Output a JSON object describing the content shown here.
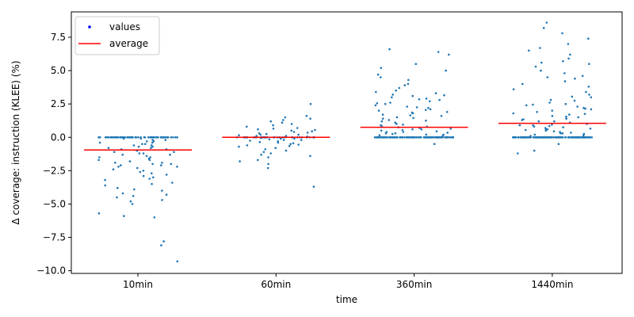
{
  "chart_data": {
    "type": "scatter",
    "xlabel": "time",
    "ylabel": "Δ coverage: instruction (KLEE) (%)",
    "categories": [
      "10min",
      "60min",
      "360min",
      "1440min"
    ],
    "ylim": [
      -10.2,
      9.4
    ],
    "yticks": [
      -10.0,
      -7.5,
      -5.0,
      -2.5,
      0.0,
      2.5,
      5.0,
      7.5
    ],
    "ytick_labels": [
      "−10.0",
      "−7.5",
      "−5.0",
      "−2.5",
      "0.0",
      "2.5",
      "5.0",
      "7.5"
    ],
    "grid": false,
    "legend": {
      "position": "top-left",
      "entries": [
        {
          "label": "values",
          "marker": "dot",
          "color": "#0000ff"
        },
        {
          "label": "average",
          "marker": "line",
          "color": "#ff0000"
        }
      ]
    },
    "series": [
      {
        "name": "values",
        "color": "#1f77b4",
        "groups": [
          {
            "category": "10min",
            "zero_count": 70,
            "values": [
              -0.1,
              -0.2,
              -0.3,
              -0.3,
              -0.4,
              -0.5,
              -0.6,
              -0.7,
              -0.8,
              -0.9,
              -1.0,
              -1.1,
              -1.1,
              -1.2,
              -1.3,
              -1.4,
              -1.5,
              -1.6,
              -1.7,
              -1.8,
              -1.9,
              -2.0,
              -2.1,
              -2.1,
              -2.2,
              -2.3,
              -2.4,
              -2.5,
              -2.7,
              -2.8,
              -2.9,
              -3.0,
              -3.2,
              -3.4,
              -3.6,
              -3.8,
              -3.9,
              -4.0,
              -4.2,
              -4.3,
              -4.5,
              -4.7,
              -4.8,
              -5.0,
              -5.7,
              -5.9,
              -6.0,
              -7.8,
              -8.1,
              -9.3,
              -0.5,
              -0.9,
              -1.3,
              -1.7,
              -2.2,
              -2.6,
              -3.1,
              -0.2,
              -0.6,
              -1.0,
              -1.5,
              -2.0,
              -0.4,
              -0.8,
              -1.2,
              -1.9,
              -3.5,
              -4.4,
              -0.1,
              -0.7
            ]
          },
          {
            "category": "60min",
            "zero_count": 40,
            "values": [
              0.1,
              -0.1,
              0.2,
              -0.2,
              0.3,
              -0.3,
              0.4,
              -0.4,
              0.5,
              -0.5,
              0.6,
              -0.6,
              0.7,
              -0.7,
              0.8,
              -0.8,
              0.9,
              -0.9,
              1.0,
              -1.0,
              1.1,
              -1.1,
              1.2,
              -1.2,
              1.3,
              -1.3,
              1.4,
              -1.4,
              1.5,
              -1.5,
              1.6,
              -1.7,
              -1.8,
              -2.0,
              -2.3,
              2.5,
              -3.7,
              0.15,
              -0.15,
              0.25,
              -0.25,
              0.35,
              -0.35,
              0.45,
              -0.45,
              0.55,
              -0.55,
              0.65,
              -0.65,
              0.05,
              -0.05,
              0.2,
              -0.2,
              0.1,
              -0.1
            ]
          },
          {
            "category": "360min",
            "zero_count": 120,
            "values": [
              0.1,
              0.2,
              0.3,
              0.4,
              0.5,
              0.6,
              0.7,
              0.8,
              0.9,
              1.0,
              1.1,
              1.2,
              1.3,
              1.4,
              1.5,
              1.6,
              1.7,
              1.8,
              1.9,
              2.0,
              2.1,
              2.2,
              2.3,
              2.4,
              2.5,
              2.6,
              2.7,
              2.8,
              2.9,
              3.0,
              3.1,
              3.2,
              3.3,
              3.4,
              3.5,
              3.7,
              3.9,
              4.0,
              4.3,
              4.5,
              4.7,
              5.0,
              5.2,
              5.5,
              6.2,
              6.4,
              6.6,
              0.15,
              0.25,
              0.35,
              0.45,
              0.55,
              0.65,
              0.75,
              0.85,
              0.95,
              1.25,
              1.45,
              1.65,
              1.85,
              2.05,
              2.25,
              2.55,
              2.85,
              3.15,
              -0.5,
              0.2,
              0.4,
              0.6,
              0.3
            ]
          },
          {
            "category": "1440min",
            "zero_count": 140,
            "values": [
              0.1,
              0.2,
              0.3,
              0.4,
              0.5,
              0.6,
              0.7,
              0.8,
              0.9,
              1.0,
              1.1,
              1.2,
              1.3,
              1.4,
              1.5,
              1.6,
              1.7,
              1.8,
              1.9,
              2.0,
              2.1,
              2.2,
              2.3,
              2.4,
              2.5,
              2.6,
              2.8,
              3.0,
              3.2,
              3.4,
              3.6,
              3.8,
              4.0,
              4.2,
              4.4,
              4.6,
              4.8,
              5.0,
              5.3,
              5.5,
              5.7,
              5.9,
              6.2,
              6.5,
              6.7,
              7.0,
              7.4,
              7.8,
              8.2,
              8.6,
              0.15,
              0.25,
              0.35,
              0.45,
              0.55,
              0.65,
              0.75,
              0.85,
              0.95,
              1.35,
              1.55,
              1.75,
              2.15,
              2.45,
              2.75,
              3.05,
              -1.2,
              -1.0,
              -0.5,
              0.3,
              0.6,
              0.9,
              1.2,
              4.5,
              5.6
            ]
          }
        ]
      },
      {
        "name": "average",
        "color": "#ff0000",
        "values": [
          -0.95,
          0.0,
          0.75,
          1.05
        ]
      }
    ]
  }
}
